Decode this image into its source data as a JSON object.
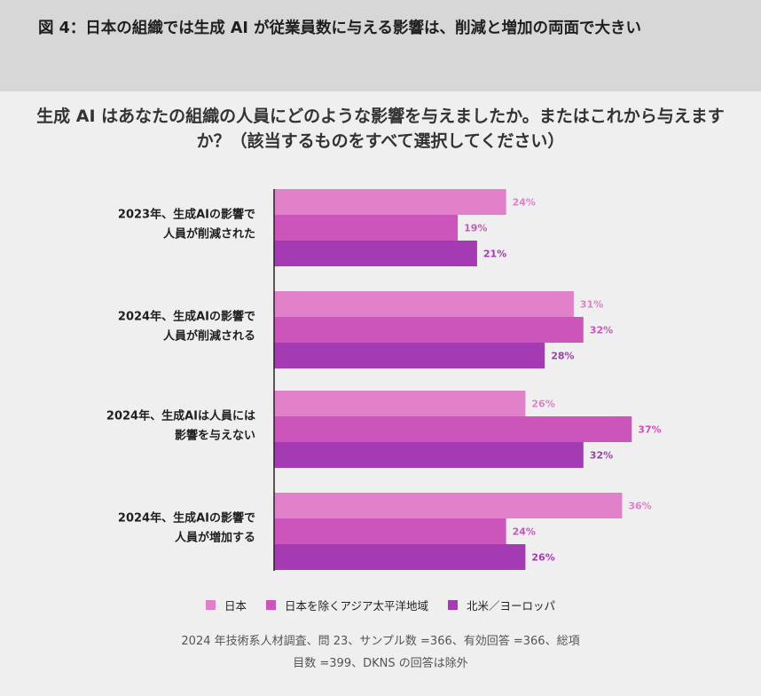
{
  "header": {
    "title": "図 4：日本の組織では生成 AI が従業員数に与える影響は、削減と増加の両面で大きい"
  },
  "question": "生成 AI はあなたの組織の人員にどのような影響を与えましたか。またはこれから与えますか？（該当するものをすべて選択してください）",
  "chart_data": {
    "type": "bar",
    "orientation": "horizontal",
    "categories": [
      [
        "2023年、生成AIの影響で",
        "人員が削減された"
      ],
      [
        "2024年、生成AIの影響で",
        "人員が削減される"
      ],
      [
        "2024年、生成AIは人員には",
        "影響を与えない"
      ],
      [
        "2024年、生成AIの影響で",
        "人員が増加する"
      ]
    ],
    "series": [
      {
        "name": "日本",
        "values": [
          24,
          31,
          26,
          36
        ],
        "color": "#df80c8"
      },
      {
        "name": "日本を除くアジア太平洋地域",
        "values": [
          19,
          32,
          37,
          24
        ],
        "color": "#cc55bb"
      },
      {
        "name": "北米／ヨーロッパ",
        "values": [
          21,
          28,
          32,
          26
        ],
        "color": "#a43bb2"
      }
    ],
    "value_suffix": "%",
    "xlim": [
      0,
      40
    ],
    "grid": false,
    "legend_position": "bottom-center"
  },
  "source": {
    "line1": "2024 年技術系人材調査、問 23、サンプル数 =366、有効回答 =366、総項",
    "line2": "目数 =399、DKNS の回答は除外"
  }
}
